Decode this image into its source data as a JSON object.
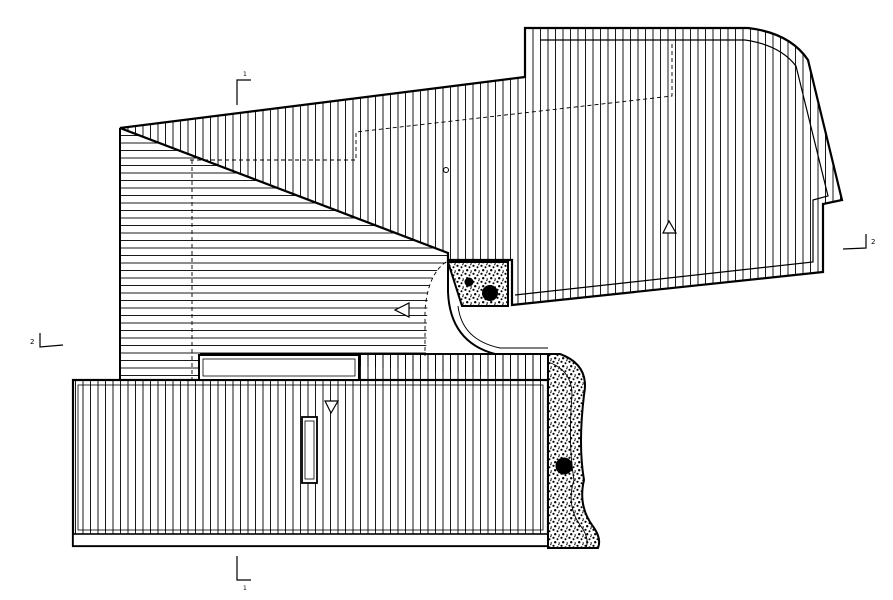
{
  "plan": {
    "section_marks": {
      "top": "1",
      "bottom": "1",
      "left": "2",
      "right": "2"
    },
    "colors": {
      "line": "#000000",
      "paper": "#ffffff"
    },
    "icons": [
      "slope-arrow-up",
      "slope-arrow-left",
      "slope-arrow-down",
      "planter-gravel",
      "tree-symbol"
    ]
  }
}
